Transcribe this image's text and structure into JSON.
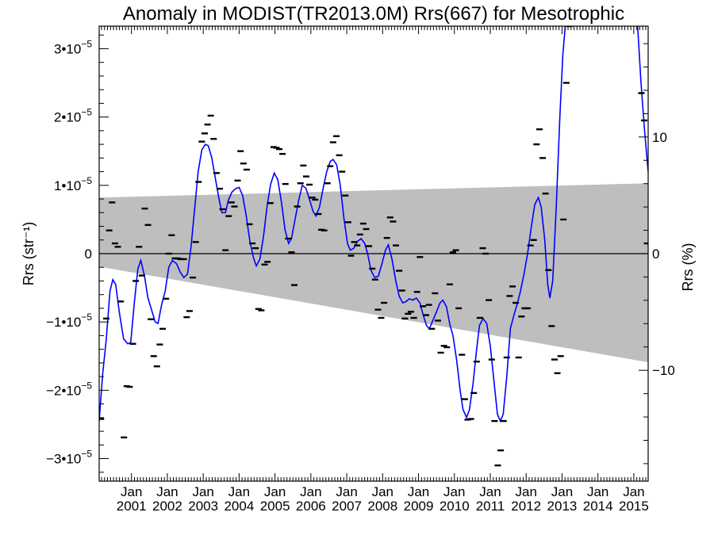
{
  "chart_data": {
    "type": "scatter",
    "title": "Anomaly in MODIST(TR2013.0M) Rrs(667) for Mesotrophic",
    "ylabel_left": "Rrs (str⁻¹)",
    "ylabel_right": "Rrs (%)",
    "x_tick_labels": [
      {
        "month": "Jan",
        "year": "2001"
      },
      {
        "month": "Jan",
        "year": "2002"
      },
      {
        "month": "Jan",
        "year": "2003"
      },
      {
        "month": "Jan",
        "year": "2004"
      },
      {
        "month": "Jan",
        "year": "2005"
      },
      {
        "month": "Jan",
        "year": "2006"
      },
      {
        "month": "Jan",
        "year": "2007"
      },
      {
        "month": "Jan",
        "year": "2008"
      },
      {
        "month": "Jan",
        "year": "2009"
      },
      {
        "month": "Jan",
        "year": "2010"
      },
      {
        "month": "Jan",
        "year": "2011"
      },
      {
        "month": "Jan",
        "year": "2012"
      },
      {
        "month": "Jan",
        "year": "2013"
      },
      {
        "month": "Jan",
        "year": "2014"
      },
      {
        "month": "Jan",
        "year": "2015"
      }
    ],
    "x_ticks": [
      2001,
      2002,
      2003,
      2004,
      2005,
      2006,
      2007,
      2008,
      2009,
      2010,
      2011,
      2012,
      2013,
      2014,
      2015
    ],
    "xlim": [
      2000.1,
      2015.4
    ],
    "ylim": [
      -3.33e-05,
      3.33e-05
    ],
    "y_tick_labels": [
      {
        "value": 3e-05,
        "label": "3•10",
        "exp": "−5"
      },
      {
        "value": 2e-05,
        "label": "2•10",
        "exp": "−5"
      },
      {
        "value": 1e-05,
        "label": "1•10",
        "exp": "−5"
      },
      {
        "value": 0,
        "label": "0",
        "exp": ""
      },
      {
        "value": -1e-05,
        "label": "−1•10",
        "exp": "−5"
      },
      {
        "value": -2e-05,
        "label": "−2•10",
        "exp": "−5"
      },
      {
        "value": -3e-05,
        "label": "−3•10",
        "exp": "−5"
      }
    ],
    "y2_tick_labels": [
      {
        "value": 10,
        "label": "10"
      },
      {
        "value": 0,
        "label": "0"
      },
      {
        "value": -10,
        "label": "−10"
      }
    ],
    "y2lim": [
      -19.5,
      19.5
    ],
    "band": {
      "x": [
        2000.1,
        2015.4
      ],
      "upper": [
        8.2e-06,
        1.03e-05
      ],
      "lower": [
        -1.9e-06,
        -1.59e-05
      ],
      "color": "#bebebe"
    },
    "zero_line": true,
    "smooth_color": "#0000ff",
    "point_color": "#000000",
    "monthly_points": [
      {
        "x": 2000.15,
        "y": -2.42e-05
      },
      {
        "x": 2000.3,
        "y": -9.5e-06
      },
      {
        "x": 2000.38,
        "y": 3.4e-06
      },
      {
        "x": 2000.46,
        "y": 7.5e-06
      },
      {
        "x": 2000.54,
        "y": 1.5e-06
      },
      {
        "x": 2000.62,
        "y": 1e-06
      },
      {
        "x": 2000.7,
        "y": -7e-06
      },
      {
        "x": 2000.79,
        "y": -2.69e-05
      },
      {
        "x": 2000.87,
        "y": -1.94e-05
      },
      {
        "x": 2000.95,
        "y": -1.95e-05
      },
      {
        "x": 2001.04,
        "y": -1.32e-05
      },
      {
        "x": 2001.12,
        "y": -4e-06
      },
      {
        "x": 2001.21,
        "y": 1e-06
      },
      {
        "x": 2001.29,
        "y": -3.2e-06
      },
      {
        "x": 2001.37,
        "y": 6.6e-06
      },
      {
        "x": 2001.46,
        "y": 4.2e-06
      },
      {
        "x": 2001.54,
        "y": -9.6e-06
      },
      {
        "x": 2001.62,
        "y": -1.5e-05
      },
      {
        "x": 2001.71,
        "y": -1.65e-05
      },
      {
        "x": 2001.79,
        "y": -1.33e-05
      },
      {
        "x": 2001.87,
        "y": -1.1e-05
      },
      {
        "x": 2001.96,
        "y": -6.6e-06
      },
      {
        "x": 2002.04,
        "y": 0.0
      },
      {
        "x": 2002.12,
        "y": 2.7e-06
      },
      {
        "x": 2002.21,
        "y": -7e-07
      },
      {
        "x": 2002.29,
        "y": -7e-07
      },
      {
        "x": 2002.37,
        "y": -8e-07
      },
      {
        "x": 2002.46,
        "y": -8e-07
      },
      {
        "x": 2002.54,
        "y": -9.3e-06
      },
      {
        "x": 2002.62,
        "y": -8.4e-06
      },
      {
        "x": 2002.71,
        "y": -3.5e-06
      },
      {
        "x": 2002.79,
        "y": 1.7e-06
      },
      {
        "x": 2002.87,
        "y": 1.05e-05
      },
      {
        "x": 2002.96,
        "y": 1.64e-05
      },
      {
        "x": 2003.04,
        "y": 1.76e-05
      },
      {
        "x": 2003.12,
        "y": 1.89e-05
      },
      {
        "x": 2003.21,
        "y": 2.02e-05
      },
      {
        "x": 2003.29,
        "y": 1.68e-05
      },
      {
        "x": 2003.37,
        "y": 1.18e-05
      },
      {
        "x": 2003.46,
        "y": 9.5e-06
      },
      {
        "x": 2003.54,
        "y": 6.5e-06
      },
      {
        "x": 2003.62,
        "y": 5e-07
      },
      {
        "x": 2003.71,
        "y": 5.5e-06
      },
      {
        "x": 2003.79,
        "y": 7.5e-06
      },
      {
        "x": 2003.87,
        "y": 6.9e-06
      },
      {
        "x": 2003.96,
        "y": 1.07e-05
      },
      {
        "x": 2004.04,
        "y": 1.5e-05
      },
      {
        "x": 2004.12,
        "y": 1.32e-05
      },
      {
        "x": 2004.21,
        "y": 1.23e-05
      },
      {
        "x": 2004.29,
        "y": 4.3e-06
      },
      {
        "x": 2004.37,
        "y": 1.5e-06
      },
      {
        "x": 2004.46,
        "y": 8e-07
      },
      {
        "x": 2004.54,
        "y": -8.1e-06
      },
      {
        "x": 2004.62,
        "y": -8.3e-06
      },
      {
        "x": 2004.71,
        "y": -1.6e-06
      },
      {
        "x": 2004.79,
        "y": -1.2e-06
      },
      {
        "x": 2004.87,
        "y": 7.4e-06
      },
      {
        "x": 2004.96,
        "y": 1.56e-05
      },
      {
        "x": 2005.04,
        "y": 1.55e-05
      },
      {
        "x": 2005.12,
        "y": 1.53e-05
      },
      {
        "x": 2005.21,
        "y": 1.46e-05
      },
      {
        "x": 2005.29,
        "y": 1.02e-05
      },
      {
        "x": 2005.37,
        "y": 2.2e-06
      },
      {
        "x": 2005.46,
        "y": 2e-07
      },
      {
        "x": 2005.54,
        "y": -4.6e-06
      },
      {
        "x": 2005.62,
        "y": 6.9e-06
      },
      {
        "x": 2005.71,
        "y": 1.03e-05
      },
      {
        "x": 2005.79,
        "y": 1.29e-05
      },
      {
        "x": 2005.87,
        "y": 1.13e-05
      },
      {
        "x": 2005.96,
        "y": 1.01e-05
      },
      {
        "x": 2006.04,
        "y": 8.2e-06
      },
      {
        "x": 2006.12,
        "y": 7.9e-06
      },
      {
        "x": 2006.21,
        "y": 5.8e-06
      },
      {
        "x": 2006.29,
        "y": 3.5e-06
      },
      {
        "x": 2006.37,
        "y": 3.4e-06
      },
      {
        "x": 2006.46,
        "y": 1.03e-05
      },
      {
        "x": 2006.54,
        "y": 1.28e-05
      },
      {
        "x": 2006.62,
        "y": 1.63e-05
      },
      {
        "x": 2006.71,
        "y": 1.72e-05
      },
      {
        "x": 2006.79,
        "y": 1.44e-05
      },
      {
        "x": 2006.87,
        "y": 1.2e-05
      },
      {
        "x": 2006.96,
        "y": 8.5e-06
      },
      {
        "x": 2007.04,
        "y": 4.6e-06
      },
      {
        "x": 2007.12,
        "y": -3e-07
      },
      {
        "x": 2007.21,
        "y": 1.7e-06
      },
      {
        "x": 2007.29,
        "y": 1.2e-06
      },
      {
        "x": 2007.37,
        "y": 2.8e-06
      },
      {
        "x": 2007.46,
        "y": 4.4e-06
      },
      {
        "x": 2007.54,
        "y": 3.6e-06
      },
      {
        "x": 2007.62,
        "y": 1.1e-06
      },
      {
        "x": 2007.71,
        "y": -2.2e-06
      },
      {
        "x": 2007.79,
        "y": -3.8e-06
      },
      {
        "x": 2007.87,
        "y": -8.2e-06
      },
      {
        "x": 2007.96,
        "y": -9.4e-06
      },
      {
        "x": 2008.04,
        "y": -7.2e-06
      },
      {
        "x": 2008.12,
        "y": 2.3e-06
      },
      {
        "x": 2008.21,
        "y": 5.3e-06
      },
      {
        "x": 2008.29,
        "y": 4.7e-06
      },
      {
        "x": 2008.37,
        "y": 1.2e-06
      },
      {
        "x": 2008.46,
        "y": -2.5e-06
      },
      {
        "x": 2008.54,
        "y": -5.4e-06
      },
      {
        "x": 2008.62,
        "y": -9.5e-06
      },
      {
        "x": 2008.71,
        "y": -8.8e-06
      },
      {
        "x": 2008.79,
        "y": -8.5e-06
      },
      {
        "x": 2008.87,
        "y": -9.4e-06
      },
      {
        "x": 2008.96,
        "y": -5.6e-06
      },
      {
        "x": 2009.04,
        "y": -5e-07
      },
      {
        "x": 2009.12,
        "y": -7.7e-06
      },
      {
        "x": 2009.21,
        "y": -9e-06
      },
      {
        "x": 2009.29,
        "y": -7.5e-06
      },
      {
        "x": 2009.37,
        "y": -1.1e-05
      },
      {
        "x": 2009.46,
        "y": -5.8e-06
      },
      {
        "x": 2009.54,
        "y": -9.8e-06
      },
      {
        "x": 2009.62,
        "y": -1.45e-05
      },
      {
        "x": 2009.71,
        "y": -1.35e-05
      },
      {
        "x": 2009.79,
        "y": -1.37e-05
      },
      {
        "x": 2009.87,
        "y": -4.5e-06
      },
      {
        "x": 2009.96,
        "y": 2e-07
      },
      {
        "x": 2010.04,
        "y": 5e-07
      },
      {
        "x": 2010.12,
        "y": -8e-06
      },
      {
        "x": 2010.21,
        "y": -1.48e-05
      },
      {
        "x": 2010.29,
        "y": -2.13e-05
      },
      {
        "x": 2010.37,
        "y": -2.43e-05
      },
      {
        "x": 2010.46,
        "y": -2.42e-05
      },
      {
        "x": 2010.54,
        "y": -2.04e-05
      },
      {
        "x": 2010.62,
        "y": -1.58e-05
      },
      {
        "x": 2010.71,
        "y": -9.4e-06
      },
      {
        "x": 2010.79,
        "y": 8e-07
      },
      {
        "x": 2010.87,
        "y": 0.0
      },
      {
        "x": 2010.96,
        "y": -6.8e-06
      },
      {
        "x": 2011.04,
        "y": -1.55e-05
      },
      {
        "x": 2011.12,
        "y": -2.45e-05
      },
      {
        "x": 2011.21,
        "y": -3.1e-05
      },
      {
        "x": 2011.29,
        "y": -2.88e-05
      },
      {
        "x": 2011.37,
        "y": -2.45e-05
      },
      {
        "x": 2011.46,
        "y": -1.52e-05
      },
      {
        "x": 2011.54,
        "y": -6.2e-06
      },
      {
        "x": 2011.62,
        "y": -4.8e-06
      },
      {
        "x": 2011.71,
        "y": -7.2e-06
      },
      {
        "x": 2011.79,
        "y": -1.52e-05
      },
      {
        "x": 2011.87,
        "y": -9.2e-06
      },
      {
        "x": 2011.96,
        "y": -8e-06
      },
      {
        "x": 2012.04,
        "y": -8e-06
      },
      {
        "x": 2012.12,
        "y": 1.2e-06
      },
      {
        "x": 2012.21,
        "y": 2e-06
      },
      {
        "x": 2012.29,
        "y": 1.6e-05
      },
      {
        "x": 2012.37,
        "y": 1.82e-05
      },
      {
        "x": 2012.46,
        "y": 1.4e-05
      },
      {
        "x": 2012.54,
        "y": 8.8e-06
      },
      {
        "x": 2012.62,
        "y": -2.4e-06
      },
      {
        "x": 2012.71,
        "y": -1.06e-05
      },
      {
        "x": 2012.79,
        "y": -1.55e-05
      },
      {
        "x": 2012.87,
        "y": -1.75e-05
      },
      {
        "x": 2012.96,
        "y": -1.5e-05
      },
      {
        "x": 2013.04,
        "y": 5e-06
      },
      {
        "x": 2013.12,
        "y": 2.5e-05
      },
      {
        "x": 2013.21,
        "y": 3.33e-05
      }
    ],
    "points_2015": [
      {
        "x": 2015.21,
        "y": 2.35e-05
      },
      {
        "x": 2015.29,
        "y": 1.95e-05
      },
      {
        "x": 2015.37,
        "y": 1.5e-06
      }
    ],
    "smooth_curve": [
      [
        2000.1,
        -2.45e-05
      ],
      [
        2000.2,
        -1.75e-05
      ],
      [
        2000.3,
        -1.25e-05
      ],
      [
        2000.4,
        -5.5e-06
      ],
      [
        2000.48,
        -3.8e-06
      ],
      [
        2000.56,
        -4.5e-06
      ],
      [
        2000.66,
        -8.5e-06
      ],
      [
        2000.78,
        -1.25e-05
      ],
      [
        2000.9,
        -1.32e-05
      ],
      [
        2000.98,
        -1.3e-05
      ],
      [
        2001.08,
        -7.2e-06
      ],
      [
        2001.18,
        -2.2e-06
      ],
      [
        2001.26,
        -1e-06
      ],
      [
        2001.36,
        -3.2e-06
      ],
      [
        2001.46,
        -6.5e-06
      ],
      [
        2001.56,
        -8.2e-06
      ],
      [
        2001.66,
        -1e-05
      ],
      [
        2001.74,
        -1.02e-05
      ],
      [
        2001.84,
        -7.5e-06
      ],
      [
        2001.94,
        -5.5e-06
      ],
      [
        2002.04,
        -2e-06
      ],
      [
        2002.14,
        -1e-06
      ],
      [
        2002.26,
        -1.5e-06
      ],
      [
        2002.36,
        -2.7e-06
      ],
      [
        2002.46,
        -3.5e-06
      ],
      [
        2002.56,
        -3e-06
      ],
      [
        2002.66,
        1e-06
      ],
      [
        2002.76,
        6.5e-06
      ],
      [
        2002.86,
        1.2e-05
      ],
      [
        2002.96,
        1.52e-05
      ],
      [
        2003.06,
        1.6e-05
      ],
      [
        2003.14,
        1.58e-05
      ],
      [
        2003.24,
        1.4e-05
      ],
      [
        2003.34,
        1.1e-05
      ],
      [
        2003.44,
        8e-06
      ],
      [
        2003.52,
        6e-06
      ],
      [
        2003.62,
        6e-06
      ],
      [
        2003.7,
        7.8e-06
      ],
      [
        2003.8,
        9e-06
      ],
      [
        2003.9,
        9.5e-06
      ],
      [
        2004.0,
        9.7e-06
      ],
      [
        2004.1,
        8.5e-06
      ],
      [
        2004.2,
        5.5e-06
      ],
      [
        2004.3,
        1.8e-06
      ],
      [
        2004.4,
        -6e-07
      ],
      [
        2004.48,
        -1.8e-06
      ],
      [
        2004.58,
        -8e-07
      ],
      [
        2004.68,
        2.5e-06
      ],
      [
        2004.78,
        7e-06
      ],
      [
        2004.88,
        1.02e-05
      ],
      [
        2004.98,
        1.18e-05
      ],
      [
        2005.08,
        1.08e-05
      ],
      [
        2005.18,
        7.5e-06
      ],
      [
        2005.28,
        3.5e-06
      ],
      [
        2005.38,
        1.5e-06
      ],
      [
        2005.46,
        2.2e-06
      ],
      [
        2005.56,
        5e-06
      ],
      [
        2005.66,
        7.8e-06
      ],
      [
        2005.76,
        1e-05
      ],
      [
        2005.86,
        9.6e-06
      ],
      [
        2005.96,
        8e-06
      ],
      [
        2006.06,
        6.2e-06
      ],
      [
        2006.14,
        5.5e-06
      ],
      [
        2006.24,
        6.8e-06
      ],
      [
        2006.34,
        9.5e-06
      ],
      [
        2006.44,
        1.2e-05
      ],
      [
        2006.54,
        1.35e-05
      ],
      [
        2006.62,
        1.38e-05
      ],
      [
        2006.72,
        1.3e-05
      ],
      [
        2006.82,
        1e-05
      ],
      [
        2006.92,
        5.2e-06
      ],
      [
        2007.02,
        1.5e-06
      ],
      [
        2007.1,
        5e-07
      ],
      [
        2007.2,
        8e-07
      ],
      [
        2007.3,
        1.8e-06
      ],
      [
        2007.4,
        2.2e-06
      ],
      [
        2007.5,
        1.5e-06
      ],
      [
        2007.58,
        0.0
      ],
      [
        2007.68,
        -2.5e-06
      ],
      [
        2007.78,
        -3.5e-06
      ],
      [
        2007.88,
        -3.3e-06
      ],
      [
        2007.98,
        -1.5e-06
      ],
      [
        2008.08,
        5e-07
      ],
      [
        2008.16,
        1.3e-06
      ],
      [
        2008.26,
        -8e-07
      ],
      [
        2008.36,
        -3.8e-06
      ],
      [
        2008.46,
        -6.2e-06
      ],
      [
        2008.56,
        -7.2e-06
      ],
      [
        2008.66,
        -7e-06
      ],
      [
        2008.74,
        -6.6e-06
      ],
      [
        2008.84,
        -6.8e-06
      ],
      [
        2008.94,
        -6.5e-06
      ],
      [
        2009.04,
        -7.2e-06
      ],
      [
        2009.12,
        -8.8e-06
      ],
      [
        2009.22,
        -1.05e-05
      ],
      [
        2009.3,
        -1.1e-05
      ],
      [
        2009.4,
        -9.8e-06
      ],
      [
        2009.5,
        -8.5e-06
      ],
      [
        2009.6,
        -7.2e-06
      ],
      [
        2009.68,
        -6.8e-06
      ],
      [
        2009.78,
        -7.8e-06
      ],
      [
        2009.88,
        -1.05e-05
      ],
      [
        2009.96,
        -1.2e-05
      ],
      [
        2010.06,
        -1.55e-05
      ],
      [
        2010.16,
        -2e-05
      ],
      [
        2010.24,
        -2.28e-05
      ],
      [
        2010.34,
        -2.4e-05
      ],
      [
        2010.42,
        -2.28e-05
      ],
      [
        2010.52,
        -1.9e-05
      ],
      [
        2010.62,
        -1.4e-05
      ],
      [
        2010.7,
        -1.05e-05
      ],
      [
        2010.8,
        -9.5e-06
      ],
      [
        2010.9,
        -1.02e-05
      ],
      [
        2011.0,
        -1.35e-05
      ],
      [
        2011.1,
        -1.85e-05
      ],
      [
        2011.2,
        -2.35e-05
      ],
      [
        2011.28,
        -2.45e-05
      ],
      [
        2011.36,
        -2.35e-05
      ],
      [
        2011.46,
        -1.8e-05
      ],
      [
        2011.56,
        -1.1e-05
      ],
      [
        2011.66,
        -9e-06
      ],
      [
        2011.76,
        -7.2e-06
      ],
      [
        2011.84,
        -5.5e-06
      ],
      [
        2011.94,
        -3e-06
      ],
      [
        2012.04,
        0.0
      ],
      [
        2012.14,
        3.8e-06
      ],
      [
        2012.24,
        7.2e-06
      ],
      [
        2012.34,
        8.2e-06
      ],
      [
        2012.42,
        6.8e-06
      ],
      [
        2012.52,
        2e-06
      ],
      [
        2012.6,
        -4.5e-06
      ],
      [
        2012.66,
        -6.5e-06
      ],
      [
        2012.74,
        -4e-06
      ],
      [
        2012.84,
        7e-06
      ],
      [
        2012.94,
        2e-05
      ],
      [
        2013.02,
        2.9e-05
      ],
      [
        2013.1,
        3.4e-05
      ]
    ],
    "smooth_curve_2015": [
      [
        2015.1,
        3.4e-05
      ],
      [
        2015.2,
        2.5e-05
      ],
      [
        2015.3,
        1.8e-05
      ],
      [
        2015.4,
        1.2e-05
      ]
    ]
  }
}
